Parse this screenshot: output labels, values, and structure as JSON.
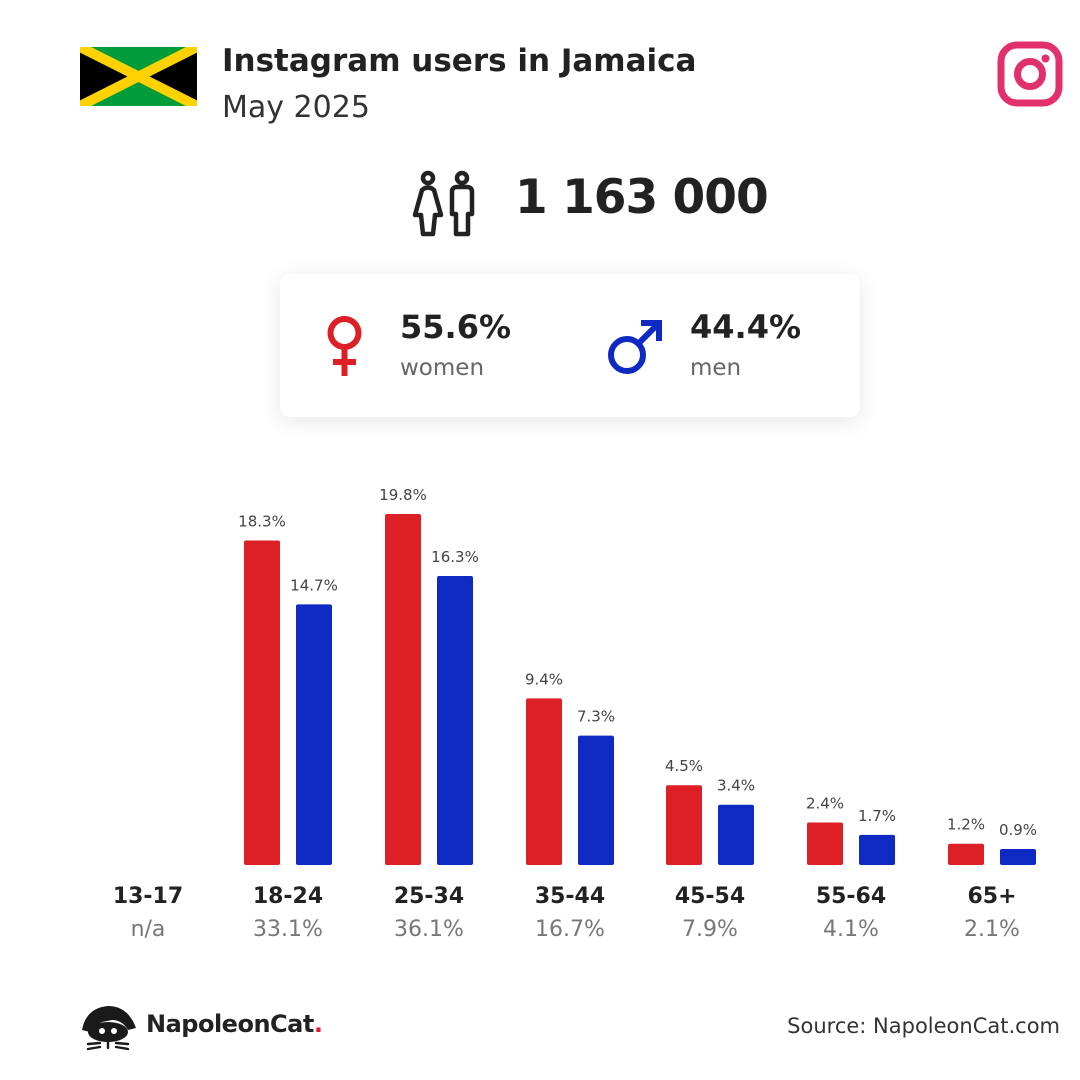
{
  "header": {
    "title": "Instagram users in Jamaica",
    "subtitle": "May 2025",
    "flag_icon": "jamaica-flag",
    "platform_icon": "instagram-logo-icon"
  },
  "total": {
    "value": "1 163 000",
    "icon": "people-icon"
  },
  "gender": {
    "women": {
      "pct": "55.6%",
      "label": "women",
      "icon": "female-symbol-icon",
      "color": "#dd1f26"
    },
    "men": {
      "pct": "44.4%",
      "label": "men",
      "icon": "male-symbol-icon",
      "color": "#0f2ac2"
    }
  },
  "chart_data": {
    "type": "bar",
    "categories": [
      "13-17",
      "18-24",
      "25-34",
      "35-44",
      "45-54",
      "55-64",
      "65+"
    ],
    "category_totals": [
      "n/a",
      "33.1%",
      "36.1%",
      "16.7%",
      "7.9%",
      "4.1%",
      "2.1%"
    ],
    "series": [
      {
        "name": "women",
        "color": "#dd1f26",
        "values": [
          null,
          18.3,
          19.8,
          9.4,
          4.5,
          2.4,
          1.2
        ],
        "labels": [
          "",
          "18.3%",
          "19.8%",
          "9.4%",
          "4.5%",
          "2.4%",
          "1.2%"
        ]
      },
      {
        "name": "men",
        "color": "#0f2ac2",
        "values": [
          null,
          14.7,
          16.3,
          7.3,
          3.4,
          1.7,
          0.9
        ],
        "labels": [
          "",
          "14.7%",
          "16.3%",
          "7.3%",
          "3.4%",
          "1.7%",
          "0.9%"
        ]
      }
    ],
    "ylim": [
      0,
      20
    ],
    "grid": false,
    "legend": "none"
  },
  "footer": {
    "brand": "NapoleonCat",
    "brand_dot": ".",
    "logo_icon": "napoleoncat-logo-icon",
    "source": "Source: NapoleonCat.com"
  }
}
